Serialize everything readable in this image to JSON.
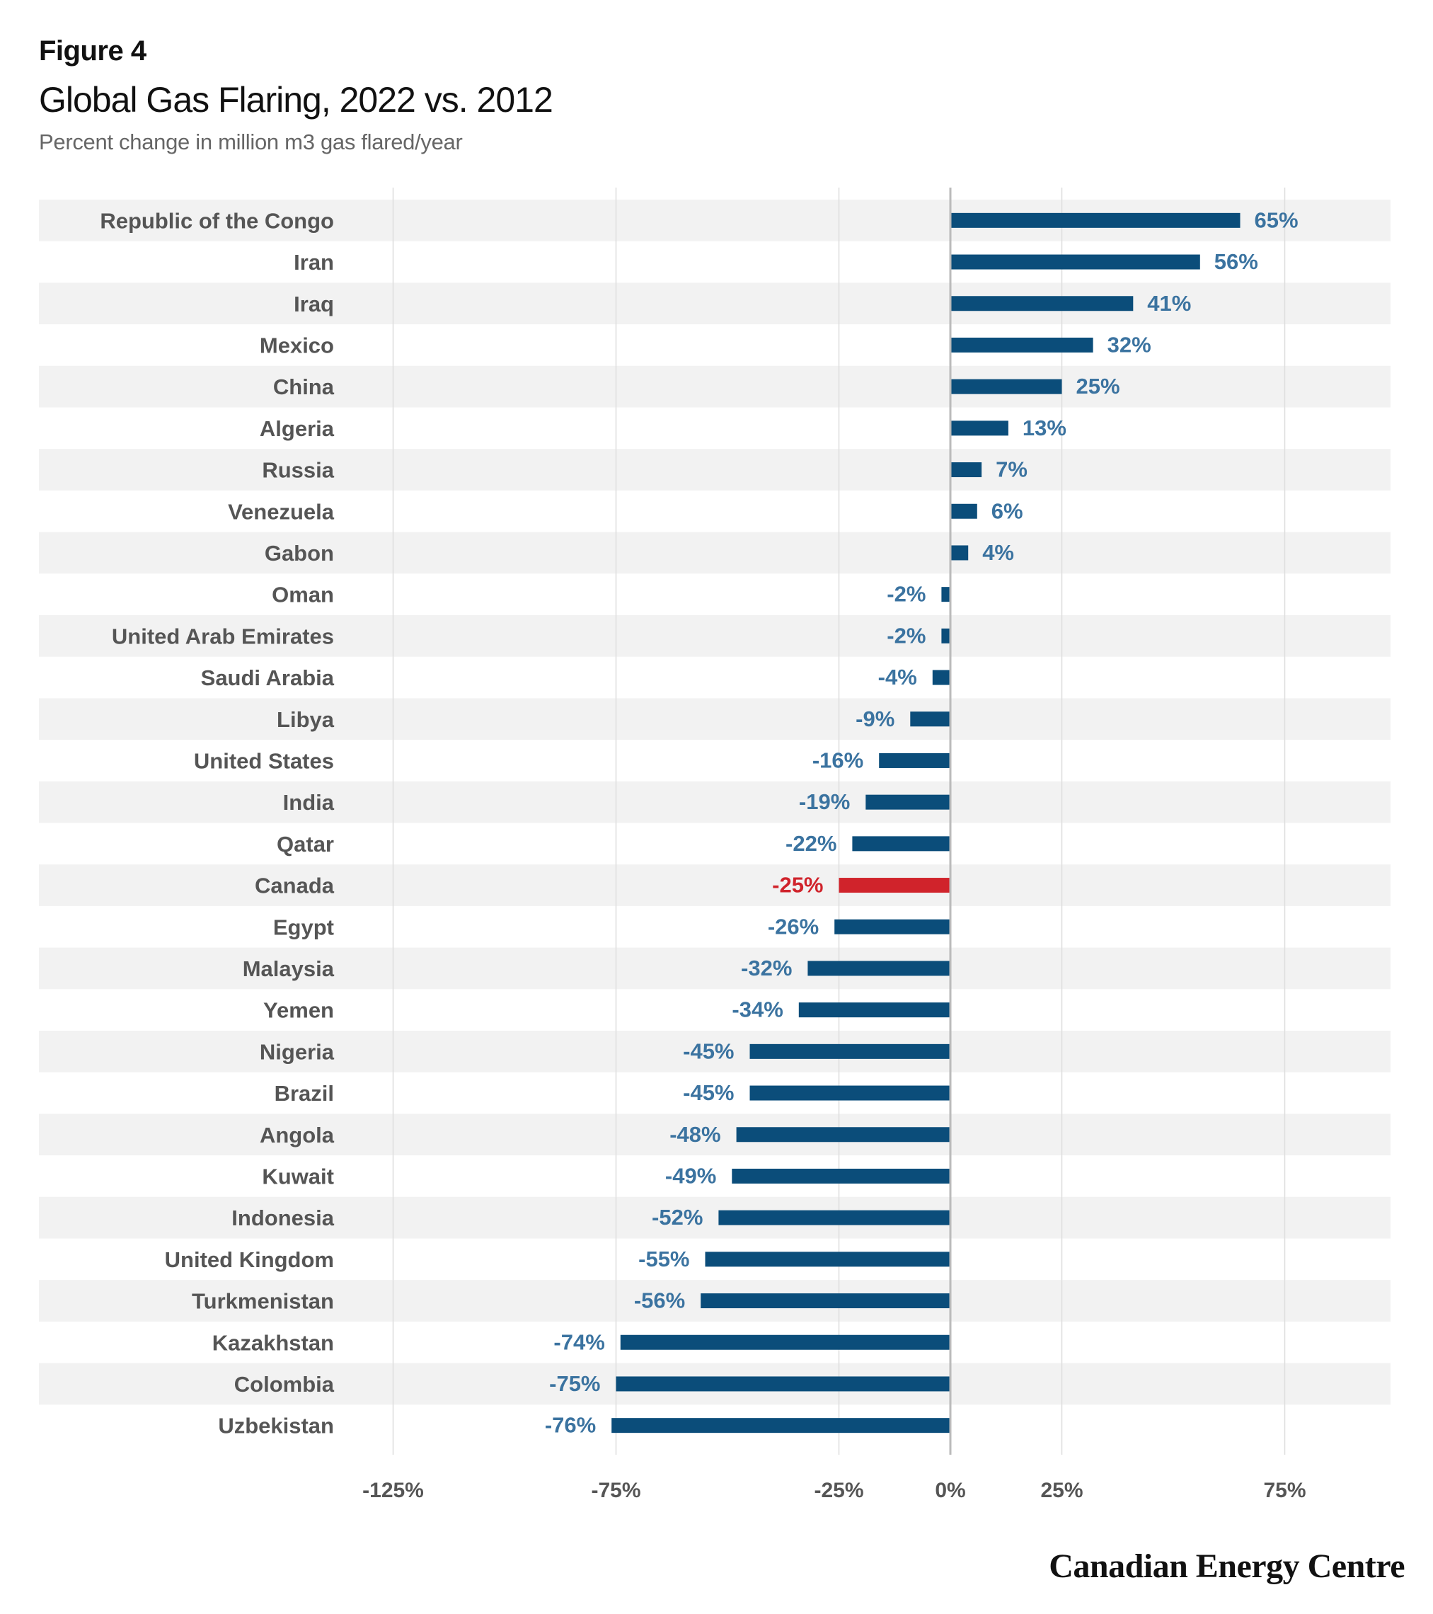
{
  "figure_label": "Figure 4",
  "title": "Global Gas Flaring, 2022 vs. 2012",
  "subtitle": "Percent change in million m3 gas flared/year",
  "brand": "Canadian Energy Centre",
  "colors": {
    "bar": "#0b4d7a",
    "highlight": "#d0232b",
    "value_text": "#3b73a0",
    "band": "#f2f2f2",
    "grid": "#dddddd",
    "zero": "#bbbbbb"
  },
  "chart_data": {
    "type": "bar",
    "orientation": "horizontal",
    "categories": [
      "Republic of the Congo",
      "Iran",
      "Iraq",
      "Mexico",
      "China",
      "Algeria",
      "Russia",
      "Venezuela",
      "Gabon",
      "Oman",
      "United Arab Emirates",
      "Saudi Arabia",
      "Libya",
      "United States",
      "India",
      "Qatar",
      "Canada",
      "Egypt",
      "Malaysia",
      "Yemen",
      "Nigeria",
      "Brazil",
      "Angola",
      "Kuwait",
      "Indonesia",
      "United Kingdom",
      "Turkmenistan",
      "Kazakhstan",
      "Colombia",
      "Uzbekistan"
    ],
    "values": [
      65,
      56,
      41,
      32,
      25,
      13,
      7,
      6,
      4,
      -2,
      -2,
      -4,
      -9,
      -16,
      -19,
      -22,
      -25,
      -26,
      -32,
      -34,
      -45,
      -45,
      -48,
      -49,
      -52,
      -55,
      -56,
      -74,
      -75,
      -76
    ],
    "labels": [
      "65%",
      "56%",
      "41%",
      "32%",
      "25%",
      "13%",
      "7%",
      "6%",
      "4%",
      "-2%",
      "-2%",
      "-4%",
      "-9%",
      "-16%",
      "-19%",
      "-22%",
      "-25%",
      "-26%",
      "-32%",
      "-34%",
      "-45%",
      "-45%",
      "-48%",
      "-49%",
      "-52%",
      "-55%",
      "-56%",
      "-74%",
      "-75%",
      "-76%"
    ],
    "highlight": "Canada",
    "xlim": [
      -125,
      75
    ],
    "xticks": [
      -125,
      -75,
      -25,
      0,
      25,
      75
    ],
    "xtick_labels": [
      "-125%",
      "-75%",
      "-25%",
      "0%",
      "25%",
      "75%"
    ],
    "xlabel": "",
    "ylabel": "",
    "grid": true,
    "legend": false
  }
}
